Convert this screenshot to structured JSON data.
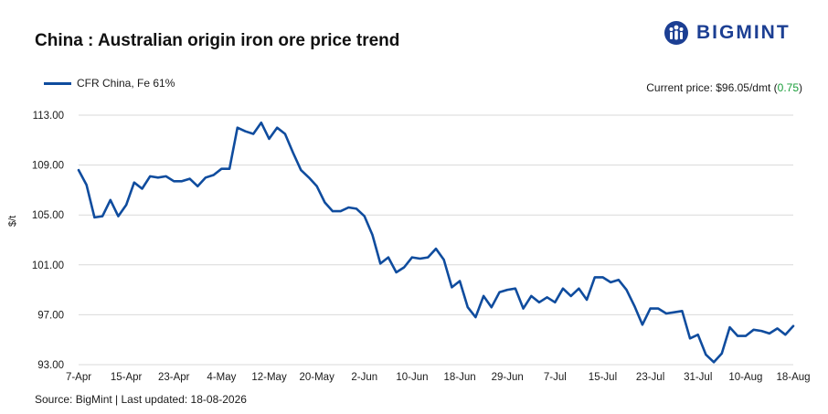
{
  "header": {
    "title": "China : Australian origin iron ore price trend",
    "brand": "BIGMINT"
  },
  "legend": {
    "series_name": "CFR China, Fe 61%"
  },
  "current_price": {
    "prefix": "Current price: $96.05/dmt (",
    "change": "0.75",
    "suffix": ")"
  },
  "footer": {
    "source": "Source: BigMint | Last updated: 18-08-2026"
  },
  "colors": {
    "series": "#0f4c9e",
    "brand": "#1c3f93",
    "positive": "#1a9e3a",
    "grid": "#d9d9d9"
  },
  "chart_data": {
    "type": "line",
    "ylabel": "$/t",
    "ylim": [
      93,
      113
    ],
    "yticks": [
      "93.00",
      "97.00",
      "101.00",
      "105.00",
      "109.00",
      "113.00"
    ],
    "yticks_values": [
      93,
      97,
      101,
      105,
      109,
      113
    ],
    "xticks": [
      "7-Apr",
      "15-Apr",
      "23-Apr",
      "4-May",
      "12-May",
      "20-May",
      "2-Jun",
      "10-Jun",
      "18-Jun",
      "29-Jun",
      "7-Jul",
      "15-Jul",
      "23-Jul",
      "31-Jul",
      "10-Aug",
      "18-Aug"
    ],
    "grid": true,
    "series": [
      {
        "name": "CFR China, Fe 61%",
        "values": [
          108.6,
          107.4,
          104.8,
          104.9,
          106.2,
          104.9,
          105.8,
          107.6,
          107.1,
          108.1,
          108.0,
          108.1,
          107.7,
          107.7,
          107.9,
          107.3,
          108.0,
          108.2,
          108.7,
          108.7,
          112.0,
          111.7,
          111.5,
          112.4,
          111.1,
          112.0,
          111.5,
          110.0,
          108.6,
          108.0,
          107.3,
          106.0,
          105.3,
          105.3,
          105.6,
          105.5,
          104.9,
          103.4,
          101.1,
          101.6,
          100.4,
          100.8,
          101.6,
          101.5,
          101.6,
          102.3,
          101.4,
          99.2,
          99.7,
          97.6,
          96.8,
          98.5,
          97.6,
          98.8,
          99.0,
          99.1,
          97.5,
          98.5,
          98.0,
          98.4,
          98.0,
          99.1,
          98.5,
          99.1,
          98.2,
          100.0,
          100.0,
          99.6,
          99.8,
          99.0,
          97.7,
          96.2,
          97.5,
          97.5,
          97.1,
          97.2,
          97.3,
          95.1,
          95.4,
          93.8,
          93.2,
          93.9,
          96.0,
          95.3,
          95.3,
          95.8,
          95.7,
          95.5,
          95.9,
          95.4,
          96.1
        ]
      }
    ]
  }
}
